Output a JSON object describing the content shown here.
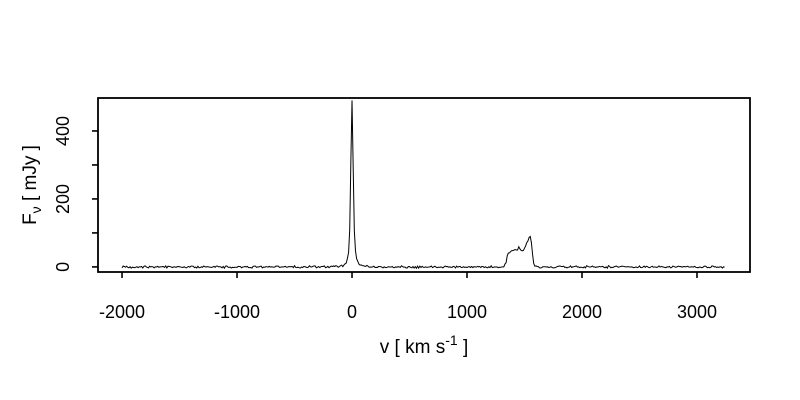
{
  "figure": {
    "background": "#ffffff",
    "line_color": "#000000",
    "frame_color": "#000000",
    "text_color": "#000000"
  },
  "chart_data": {
    "type": "line",
    "title": "",
    "xlabel_parts": {
      "pre": "v [ km s",
      "sup": "-1",
      "post": " ]"
    },
    "ylabel_parts": {
      "pre": "F",
      "sub": "ν",
      "post": " [ mJy ]"
    },
    "xlim": [
      -2209,
      3461
    ],
    "ylim": [
      -15,
      497
    ],
    "grid": false,
    "legend": null,
    "x_ticks": [
      {
        "v": -2000,
        "label": "-2000"
      },
      {
        "v": -1000,
        "label": "-1000"
      },
      {
        "v": 0,
        "label": "0"
      },
      {
        "v": 1000,
        "label": "1000"
      },
      {
        "v": 2000,
        "label": "2000"
      },
      {
        "v": 3000,
        "label": "3000"
      }
    ],
    "y_ticks": [
      {
        "v": 0,
        "label": "0"
      },
      {
        "v": 100,
        "label": ""
      },
      {
        "v": 200,
        "label": "200"
      },
      {
        "v": 300,
        "label": ""
      },
      {
        "v": 400,
        "label": "400"
      }
    ],
    "series": [
      {
        "name": "spectrum",
        "x_start": -2000,
        "x_end": 3240,
        "step": 10,
        "noise_mJy": 4,
        "noise_seed": 977,
        "envelope_points": [
          [
            -2000,
            0
          ],
          [
            -210,
            0
          ],
          [
            -160,
            1
          ],
          [
            -120,
            2
          ],
          [
            -90,
            3
          ],
          [
            -70,
            6
          ],
          [
            -55,
            10
          ],
          [
            -45,
            16
          ],
          [
            -36,
            28
          ],
          [
            -30,
            45
          ],
          [
            -25,
            70
          ],
          [
            -20,
            110
          ],
          [
            -16,
            170
          ],
          [
            -12,
            260
          ],
          [
            -8,
            360
          ],
          [
            -5,
            430
          ],
          [
            -2,
            478
          ],
          [
            0,
            492
          ],
          [
            2,
            474
          ],
          [
            5,
            420
          ],
          [
            8,
            345
          ],
          [
            12,
            250
          ],
          [
            16,
            165
          ],
          [
            20,
            108
          ],
          [
            25,
            70
          ],
          [
            30,
            45
          ],
          [
            36,
            28
          ],
          [
            45,
            16
          ],
          [
            55,
            10
          ],
          [
            70,
            6
          ],
          [
            90,
            3
          ],
          [
            120,
            2
          ],
          [
            160,
            1
          ],
          [
            210,
            0
          ],
          [
            1300,
            0
          ],
          [
            1322,
            3
          ],
          [
            1338,
            12
          ],
          [
            1348,
            28
          ],
          [
            1358,
            40
          ],
          [
            1372,
            44
          ],
          [
            1390,
            46
          ],
          [
            1408,
            50
          ],
          [
            1424,
            53
          ],
          [
            1438,
            50
          ],
          [
            1452,
            57
          ],
          [
            1466,
            51
          ],
          [
            1482,
            49
          ],
          [
            1498,
            54
          ],
          [
            1512,
            63
          ],
          [
            1526,
            76
          ],
          [
            1540,
            85
          ],
          [
            1550,
            86
          ],
          [
            1558,
            78
          ],
          [
            1566,
            52
          ],
          [
            1572,
            28
          ],
          [
            1580,
            10
          ],
          [
            1594,
            3
          ],
          [
            1614,
            0
          ],
          [
            3240,
            0
          ]
        ]
      }
    ]
  }
}
